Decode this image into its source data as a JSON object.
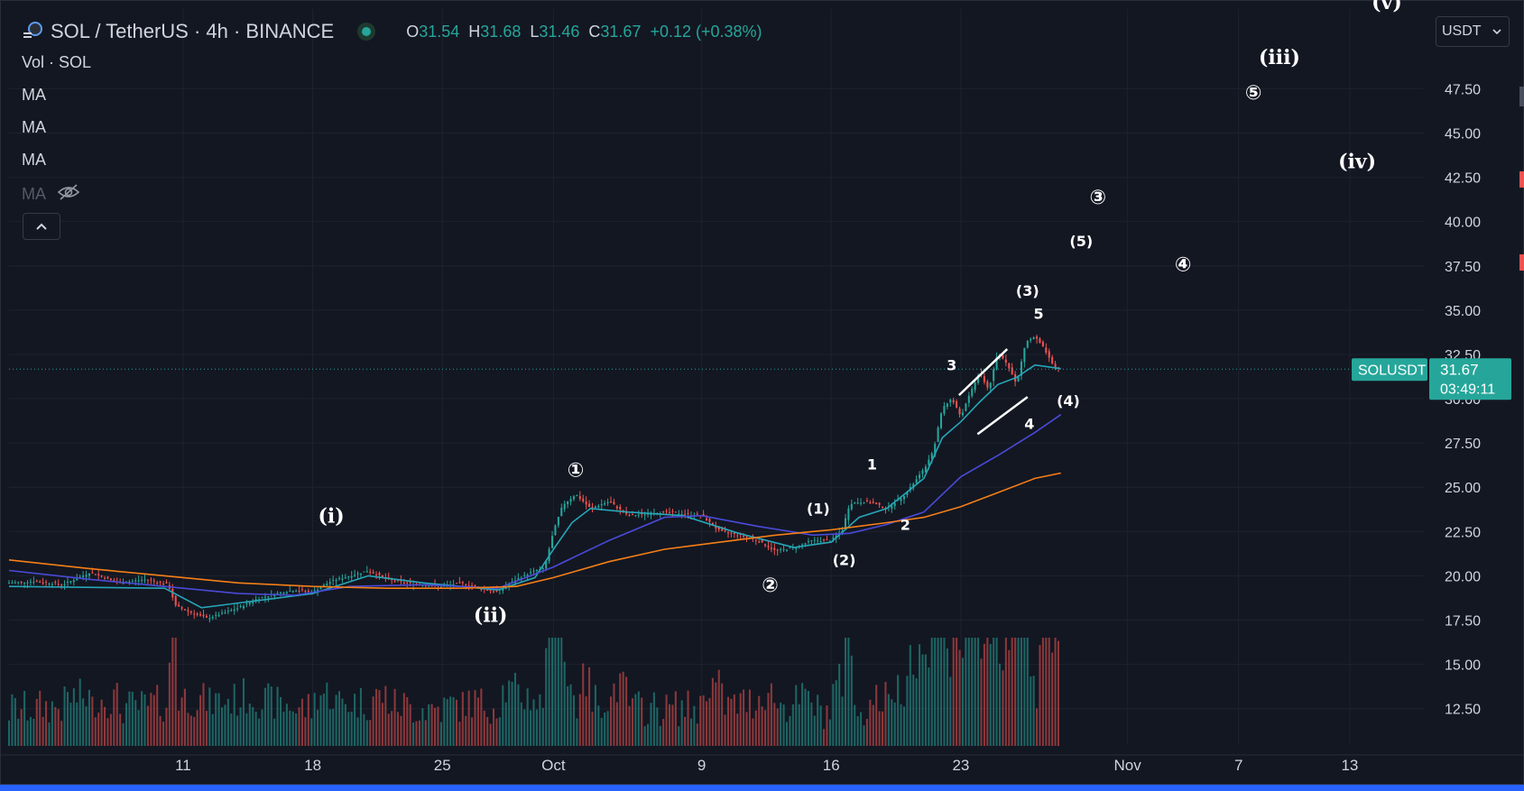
{
  "header": {
    "symbol_title": "SOL / TetherUS · 4h · BINANCE",
    "ohlc": [
      {
        "label": "O",
        "value": "31.54"
      },
      {
        "label": "H",
        "value": "31.68"
      },
      {
        "label": "L",
        "value": "31.46"
      },
      {
        "label": "C",
        "value": "31.67"
      },
      {
        "label": "",
        "value": "+0.12 (+0.38%)"
      }
    ],
    "status_color": "#26a69a"
  },
  "legend": {
    "volume": "Vol · SOL",
    "ma_items": [
      "MA",
      "MA",
      "MA"
    ],
    "ma_hidden": "MA",
    "collapse_icon": "chevron-up-icon"
  },
  "currency_selector": {
    "value": "USDT"
  },
  "price_label": {
    "symbol": "SOLUSDT",
    "price": "31.67",
    "countdown": "03:49:11",
    "color": "#26a69a"
  },
  "chart_data": {
    "type": "candlestick",
    "title": "SOL / TetherUS · 4h · BINANCE",
    "y_ticks": [
      "47.50",
      "45.00",
      "42.50",
      "40.00",
      "37.50",
      "35.00",
      "32.50",
      "30.00",
      "27.50",
      "25.00",
      "22.50",
      "20.00",
      "17.50",
      "15.00",
      "12.50"
    ],
    "ylim": [
      10.5,
      52
    ],
    "x_ticks": [
      "11",
      "18",
      "25",
      "Oct",
      "9",
      "16",
      "23",
      "Nov",
      "7",
      "13"
    ],
    "x_tick_days": [
      11,
      18,
      25,
      31,
      39,
      46,
      53,
      62,
      68,
      74
    ],
    "xlim_days": [
      1.6,
      78
    ],
    "last_price": 31.67,
    "price_path": [
      [
        1.6,
        19.6
      ],
      [
        3,
        19.7
      ],
      [
        4.5,
        19.5
      ],
      [
        6,
        20.2
      ],
      [
        7.5,
        19.6
      ],
      [
        9,
        19.8
      ],
      [
        10.2,
        19.5
      ],
      [
        10.6,
        18.3
      ],
      [
        11.5,
        17.9
      ],
      [
        12.3,
        17.6
      ],
      [
        13.2,
        17.9
      ],
      [
        14,
        18.2
      ],
      [
        15,
        18.7
      ],
      [
        16,
        19.0
      ],
      [
        17,
        19.2
      ],
      [
        18,
        19.1
      ],
      [
        19,
        19.7
      ],
      [
        20,
        20.0
      ],
      [
        21,
        20.3
      ],
      [
        22,
        19.8
      ],
      [
        23,
        19.6
      ],
      [
        24,
        19.5
      ],
      [
        25,
        19.4
      ],
      [
        26,
        19.6
      ],
      [
        27,
        19.3
      ],
      [
        28,
        19.1
      ],
      [
        29,
        19.8
      ],
      [
        30,
        20.3
      ],
      [
        30.5,
        20.4
      ],
      [
        31,
        22.5
      ],
      [
        31.5,
        24.0
      ],
      [
        32.2,
        24.6
      ],
      [
        33,
        23.8
      ],
      [
        34,
        24.2
      ],
      [
        35,
        23.4
      ],
      [
        36,
        23.5
      ],
      [
        37,
        23.6
      ],
      [
        38,
        23.5
      ],
      [
        39,
        23.4
      ],
      [
        40,
        22.5
      ],
      [
        41,
        22.3
      ],
      [
        42,
        22.0
      ],
      [
        43,
        21.4
      ],
      [
        44,
        21.6
      ],
      [
        45,
        22.0
      ],
      [
        46,
        22.0
      ],
      [
        46.6,
        22.6
      ],
      [
        47,
        24.1
      ],
      [
        48,
        24.2
      ],
      [
        49,
        23.8
      ],
      [
        50,
        24.6
      ],
      [
        51,
        26.0
      ],
      [
        51.5,
        27.0
      ],
      [
        52,
        29.5
      ],
      [
        52.5,
        30.0
      ],
      [
        53,
        29.0
      ],
      [
        53.5,
        30.3
      ],
      [
        54,
        31.5
      ],
      [
        54.5,
        30.5
      ],
      [
        55,
        32.6
      ],
      [
        55.5,
        32.0
      ],
      [
        56,
        30.8
      ],
      [
        56.5,
        33.2
      ],
      [
        57,
        33.5
      ],
      [
        57.5,
        32.8
      ],
      [
        58,
        31.8
      ],
      [
        58.4,
        31.7
      ]
    ],
    "series": [
      {
        "name": "MA",
        "color": "#26a6b8",
        "points": [
          [
            1.6,
            19.4
          ],
          [
            10,
            19.3
          ],
          [
            12,
            18.2
          ],
          [
            15,
            18.6
          ],
          [
            18,
            19.0
          ],
          [
            21,
            20.0
          ],
          [
            24,
            19.6
          ],
          [
            28,
            19.2
          ],
          [
            30,
            19.9
          ],
          [
            31,
            21.5
          ],
          [
            32,
            23.0
          ],
          [
            33,
            23.8
          ],
          [
            35,
            23.6
          ],
          [
            38,
            23.4
          ],
          [
            41,
            22.4
          ],
          [
            44,
            21.6
          ],
          [
            46,
            21.9
          ],
          [
            47.5,
            23.3
          ],
          [
            49,
            23.8
          ],
          [
            51,
            25.5
          ],
          [
            52,
            27.8
          ],
          [
            53,
            28.7
          ],
          [
            54,
            29.8
          ],
          [
            55,
            30.8
          ],
          [
            56,
            31.2
          ],
          [
            57,
            31.9
          ],
          [
            58.4,
            31.7
          ]
        ]
      },
      {
        "name": "MA",
        "color": "#4a4ad8",
        "points": [
          [
            1.6,
            20.3
          ],
          [
            6,
            19.8
          ],
          [
            10,
            19.4
          ],
          [
            14,
            19.0
          ],
          [
            17,
            18.9
          ],
          [
            20,
            19.4
          ],
          [
            24,
            19.5
          ],
          [
            28,
            19.3
          ],
          [
            31,
            20.5
          ],
          [
            34,
            22.0
          ],
          [
            37,
            23.3
          ],
          [
            39,
            23.4
          ],
          [
            42,
            22.8
          ],
          [
            45,
            22.3
          ],
          [
            47,
            22.4
          ],
          [
            49,
            22.9
          ],
          [
            51,
            23.6
          ],
          [
            53,
            25.6
          ],
          [
            55,
            26.8
          ],
          [
            57,
            28.1
          ],
          [
            58.4,
            29.1
          ]
        ]
      },
      {
        "name": "MA",
        "color": "#f57f17",
        "points": [
          [
            1.6,
            20.9
          ],
          [
            6,
            20.4
          ],
          [
            10,
            20.0
          ],
          [
            14,
            19.6
          ],
          [
            18,
            19.4
          ],
          [
            22,
            19.3
          ],
          [
            26,
            19.3
          ],
          [
            29,
            19.4
          ],
          [
            31,
            19.9
          ],
          [
            34,
            20.8
          ],
          [
            37,
            21.5
          ],
          [
            40,
            21.9
          ],
          [
            43,
            22.3
          ],
          [
            46,
            22.6
          ],
          [
            49,
            23.0
          ],
          [
            51,
            23.3
          ],
          [
            53,
            23.9
          ],
          [
            55,
            24.7
          ],
          [
            57,
            25.5
          ],
          [
            58.4,
            25.8
          ]
        ]
      }
    ],
    "wave_labels": [
      {
        "text": "(i)",
        "day": 19,
        "price": 23.0,
        "size": "large"
      },
      {
        "text": "(ii)",
        "day": 27.6,
        "price": 17.4,
        "size": "large"
      },
      {
        "text": "①",
        "day": 32.2,
        "price": 25.6,
        "size": "circle"
      },
      {
        "text": "②",
        "day": 42.7,
        "price": 19.1,
        "size": "circle"
      },
      {
        "text": "(1)",
        "day": 45.3,
        "price": 23.5,
        "size": "small"
      },
      {
        "text": "(2)",
        "day": 46.7,
        "price": 20.6,
        "size": "small"
      },
      {
        "text": "1",
        "day": 48.2,
        "price": 26.0,
        "size": "small"
      },
      {
        "text": "2",
        "day": 50.0,
        "price": 22.6,
        "size": "small"
      },
      {
        "text": "3",
        "day": 52.5,
        "price": 31.6,
        "size": "small"
      },
      {
        "text": "4",
        "day": 56.7,
        "price": 28.3,
        "size": "small"
      },
      {
        "text": "5",
        "day": 57.2,
        "price": 34.5,
        "size": "small"
      },
      {
        "text": "(3)",
        "day": 56.6,
        "price": 35.8,
        "size": "small"
      },
      {
        "text": "(4)",
        "day": 58.8,
        "price": 29.6,
        "size": "small"
      },
      {
        "text": "(5)",
        "day": 59.5,
        "price": 38.6,
        "size": "small"
      },
      {
        "text": "③",
        "day": 60.4,
        "price": 41.0,
        "size": "circle"
      },
      {
        "text": "④",
        "day": 65.0,
        "price": 37.2,
        "size": "circle"
      },
      {
        "text": "(iii)",
        "day": 70.2,
        "price": 48.9,
        "size": "large"
      },
      {
        "text": "⑤",
        "day": 68.8,
        "price": 46.9,
        "size": "circle"
      },
      {
        "text": "(iv)",
        "day": 74.4,
        "price": 43.0,
        "size": "large"
      },
      {
        "text": "(v)",
        "day": 76.0,
        "price": 52.0,
        "size": "large"
      }
    ],
    "trend_lines": [
      {
        "from": [
          52.9,
          30.2
        ],
        "to": [
          55.5,
          32.8
        ]
      },
      {
        "from": [
          53.9,
          28.0
        ],
        "to": [
          56.6,
          30.1
        ]
      }
    ],
    "volume_note": "volume histogram",
    "grid": true
  }
}
